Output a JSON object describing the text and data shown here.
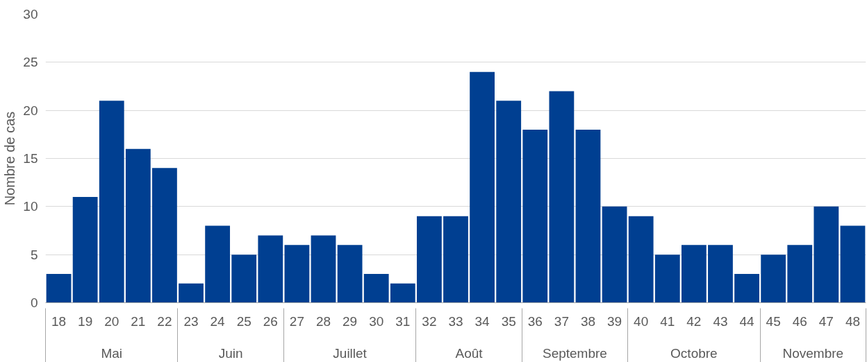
{
  "chart_data": {
    "type": "bar",
    "ylabel": "Nombre de cas",
    "categories": [
      "18",
      "19",
      "20",
      "21",
      "22",
      "23",
      "24",
      "25",
      "26",
      "27",
      "28",
      "29",
      "30",
      "31",
      "32",
      "33",
      "34",
      "35",
      "36",
      "37",
      "38",
      "39",
      "40",
      "41",
      "42",
      "43",
      "44",
      "45",
      "46",
      "47",
      "48"
    ],
    "values": [
      3,
      11,
      21,
      16,
      14,
      2,
      8,
      5,
      7,
      6,
      7,
      6,
      3,
      2,
      9,
      9,
      24,
      21,
      18,
      22,
      18,
      10,
      9,
      5,
      6,
      6,
      3,
      5,
      6,
      10,
      8
    ],
    "color": "#003f91",
    "ylim": [
      0,
      30
    ],
    "yticks": [
      0,
      5,
      10,
      15,
      20,
      25,
      30
    ],
    "grid": "y",
    "annotations": [
      "Mai",
      "Juin",
      "Juillet",
      "Août",
      "Septembre",
      "Octobre",
      "Novembre"
    ]
  }
}
